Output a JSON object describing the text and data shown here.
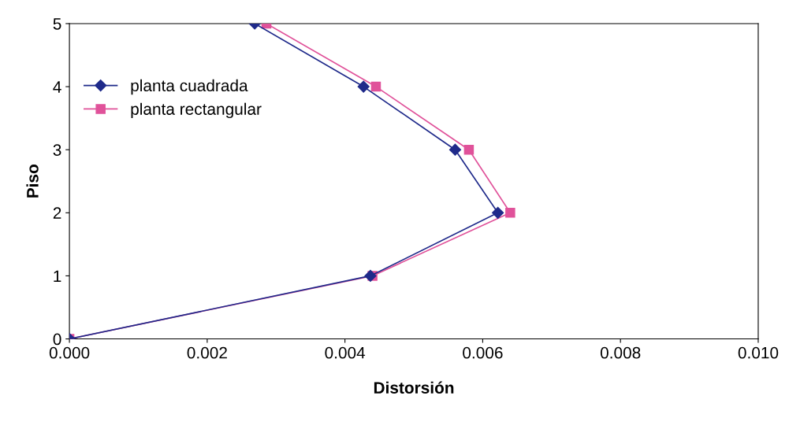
{
  "chart_data": {
    "type": "line",
    "xlabel": "Distorsión",
    "ylabel": "Piso",
    "series": [
      {
        "name": "planta cuadrada",
        "color": "#1f2a8a",
        "marker": "diamond",
        "x": [
          0.0,
          0.00437,
          0.00622,
          0.0056,
          0.00427,
          0.00269
        ],
        "values": [
          0,
          1,
          2,
          3,
          4,
          5
        ]
      },
      {
        "name": "planta rectangular",
        "color": "#e0529a",
        "marker": "square",
        "x": [
          0.0,
          0.0044,
          0.0064,
          0.0058,
          0.00445,
          0.00286
        ],
        "values": [
          0,
          1,
          2,
          3,
          4,
          5
        ]
      }
    ],
    "xlim": [
      0,
      0.01
    ],
    "xticks": [
      {
        "value": 0,
        "label": "0.000"
      },
      {
        "value": 0.002,
        "label": "0.002"
      },
      {
        "value": 0.004,
        "label": "0.004"
      },
      {
        "value": 0.006,
        "label": "0.006"
      },
      {
        "value": 0.008,
        "label": "0.008"
      },
      {
        "value": 0.01,
        "label": "0.010"
      }
    ],
    "ylim": [
      0,
      5
    ],
    "yticks": [
      0,
      1,
      2,
      3,
      4,
      5
    ],
    "legend": "top left",
    "grid": false
  }
}
